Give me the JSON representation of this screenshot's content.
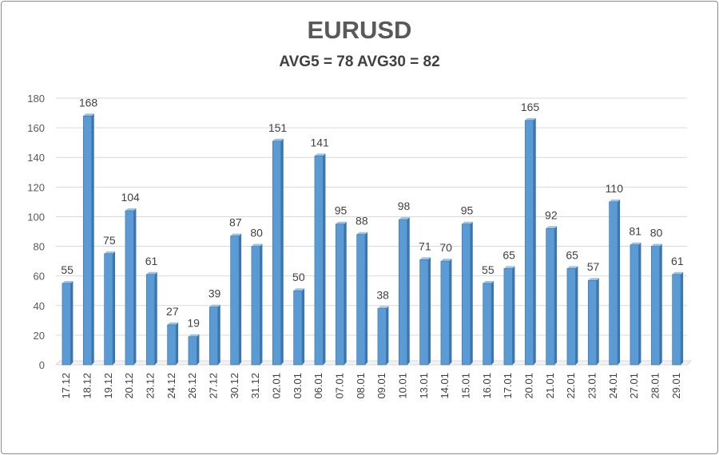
{
  "chart_data": {
    "type": "bar",
    "title": "EURUSD",
    "subtitle": "AVG5 = 78 AVG30 = 82",
    "xlabel": "",
    "ylabel": "",
    "ylim": [
      0,
      180
    ],
    "yticks": [
      0,
      20,
      40,
      60,
      80,
      100,
      120,
      140,
      160,
      180
    ],
    "grid": true,
    "legend": "none",
    "categories": [
      "17.12",
      "18.12",
      "19.12",
      "20.12",
      "23.12",
      "24.12",
      "26.12",
      "27.12",
      "30.12",
      "31.12",
      "02.01",
      "03.01",
      "06.01",
      "07.01",
      "08.01",
      "09.01",
      "10.01",
      "13.01",
      "14.01",
      "15.01",
      "16.01",
      "17.01",
      "20.01",
      "21.01",
      "22.01",
      "23.01",
      "24.01",
      "27.01",
      "28.01",
      "29.01"
    ],
    "values": [
      55,
      168,
      75,
      104,
      61,
      27,
      19,
      39,
      87,
      80,
      151,
      50,
      141,
      95,
      88,
      38,
      98,
      71,
      70,
      95,
      55,
      65,
      165,
      92,
      65,
      57,
      110,
      81,
      80,
      61
    ],
    "colors": {
      "bar": "#5b9bd5",
      "bar_dark": "#3a76b0",
      "bar_light": "#9dc3e6",
      "grid": "#d9d9d9",
      "title": "#595959"
    }
  }
}
